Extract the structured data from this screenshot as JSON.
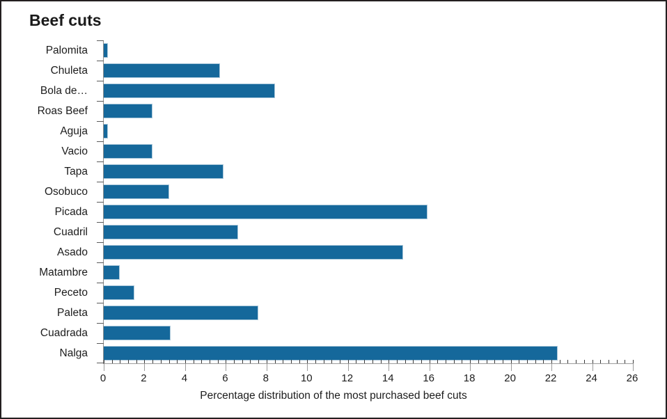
{
  "chart_data": {
    "type": "bar",
    "orientation": "horizontal",
    "title": "Beef cuts",
    "xlabel": "Percentage distribution of the most purchased beef cuts",
    "categories": [
      "Palomita",
      "Chuleta",
      "Bola de…",
      "Roas Beef",
      "Aguja",
      "Vacio",
      "Tapa",
      "Osobuco",
      "Picada",
      "Cuadril",
      "Asado",
      "Matambre",
      "Peceto",
      "Paleta",
      "Cuadrada",
      "Nalga"
    ],
    "values": [
      0.2,
      5.7,
      8.4,
      2.4,
      0.2,
      2.4,
      5.9,
      3.2,
      15.9,
      6.6,
      14.7,
      0.8,
      1.5,
      7.6,
      3.3,
      22.3
    ],
    "xlim": [
      0,
      26
    ],
    "x_major_tick_step": 2,
    "x_minor_tick_step": 0.4,
    "x_tick_labels": [
      "0",
      "2",
      "4",
      "6",
      "8",
      "10",
      "12",
      "14",
      "16",
      "18",
      "20",
      "22",
      "24",
      "26"
    ],
    "grid": false,
    "legend": false,
    "colors": {
      "bar_fill": "#15689B",
      "bar_border": "#a9c7da",
      "axis_line": "#9b9b9b",
      "minor_tick": "#3a3a3a",
      "text": "#1c1c1c",
      "frame_border": "#231f20"
    }
  }
}
